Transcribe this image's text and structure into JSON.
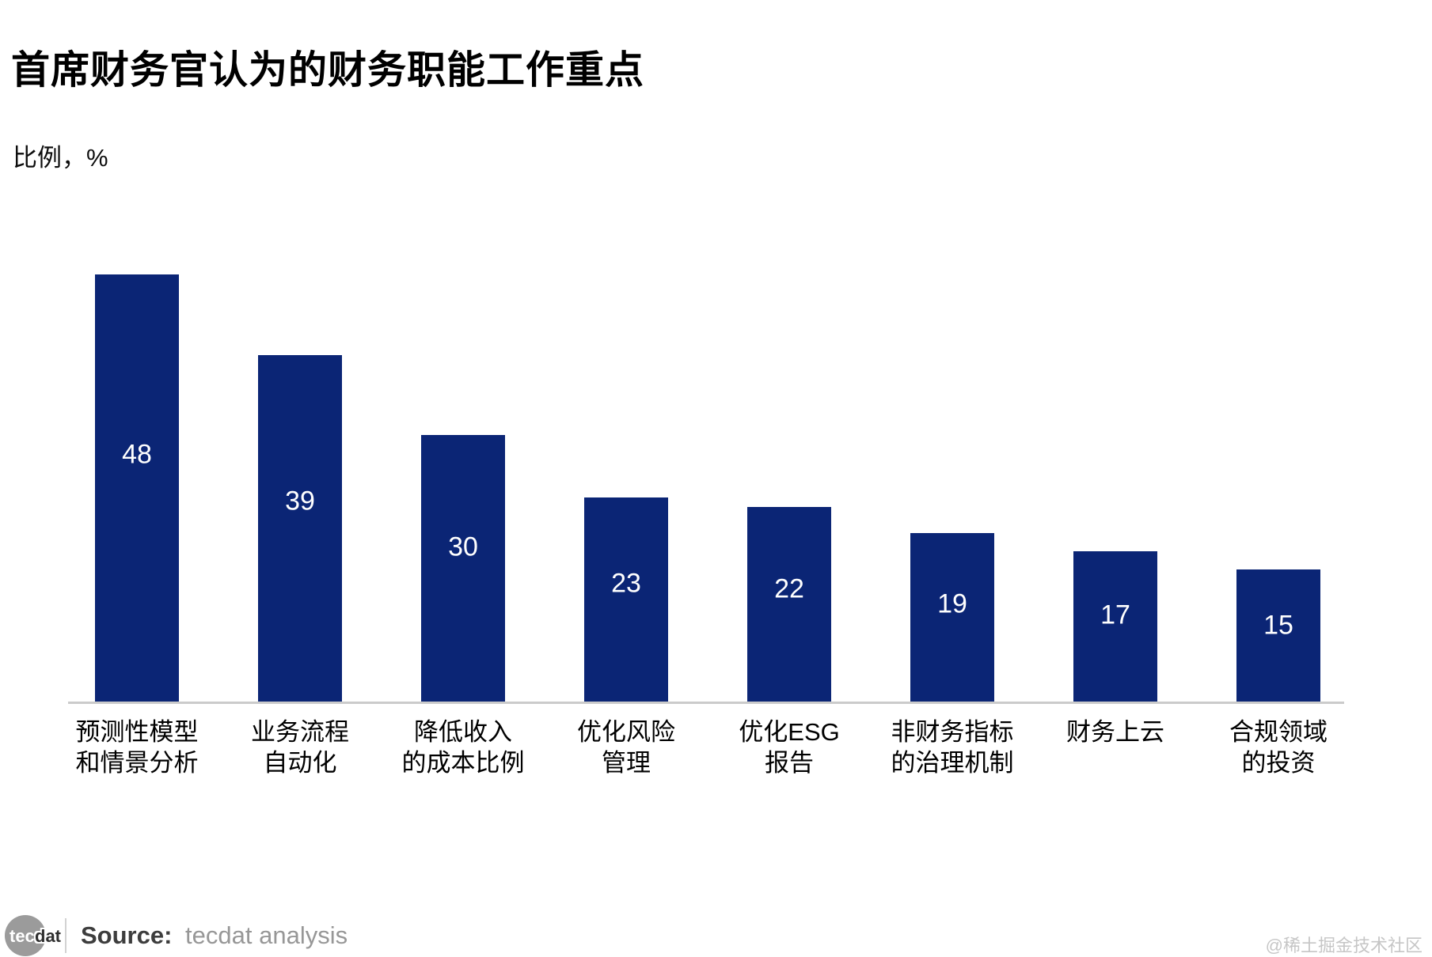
{
  "title": "首席财务官认为的财务职能工作重点",
  "unit_label": "比例，%",
  "chart_data": {
    "type": "bar",
    "title": "首席财务官认为的财务职能工作重点",
    "ylabel": "比例，%",
    "categories": [
      "预测性模型和情景分析",
      "业务流程自动化",
      "降低收入的成本比例",
      "优化风险管理",
      "优化ESG报告",
      "非财务指标的治理机制",
      "财务上云",
      "合规领域的投资"
    ],
    "category_label_lines": [
      [
        "预测性模型",
        "和情景分析"
      ],
      [
        "业务流程",
        "自动化"
      ],
      [
        "降低收入",
        "的成本比例"
      ],
      [
        "优化风险",
        "管理"
      ],
      [
        "优化ESG",
        "报告"
      ],
      [
        "非财务指标",
        "的治理机制"
      ],
      [
        "财务上云"
      ],
      [
        "合规领域",
        "的投资"
      ]
    ],
    "values": [
      48,
      39,
      30,
      23,
      22,
      19,
      17,
      15
    ],
    "ylim": [
      0,
      50
    ],
    "grid": "off",
    "legend": "none",
    "bar_color": "#0b2575",
    "value_label_color": "#ffffff",
    "axis_line_color": "#cbcbcb"
  },
  "footer": {
    "logo_text_primary": "tec",
    "logo_text_secondary": "dat",
    "source_prefix": "Source:",
    "source_text": "tecdat analysis"
  },
  "watermark": "@稀土掘金技术社区"
}
